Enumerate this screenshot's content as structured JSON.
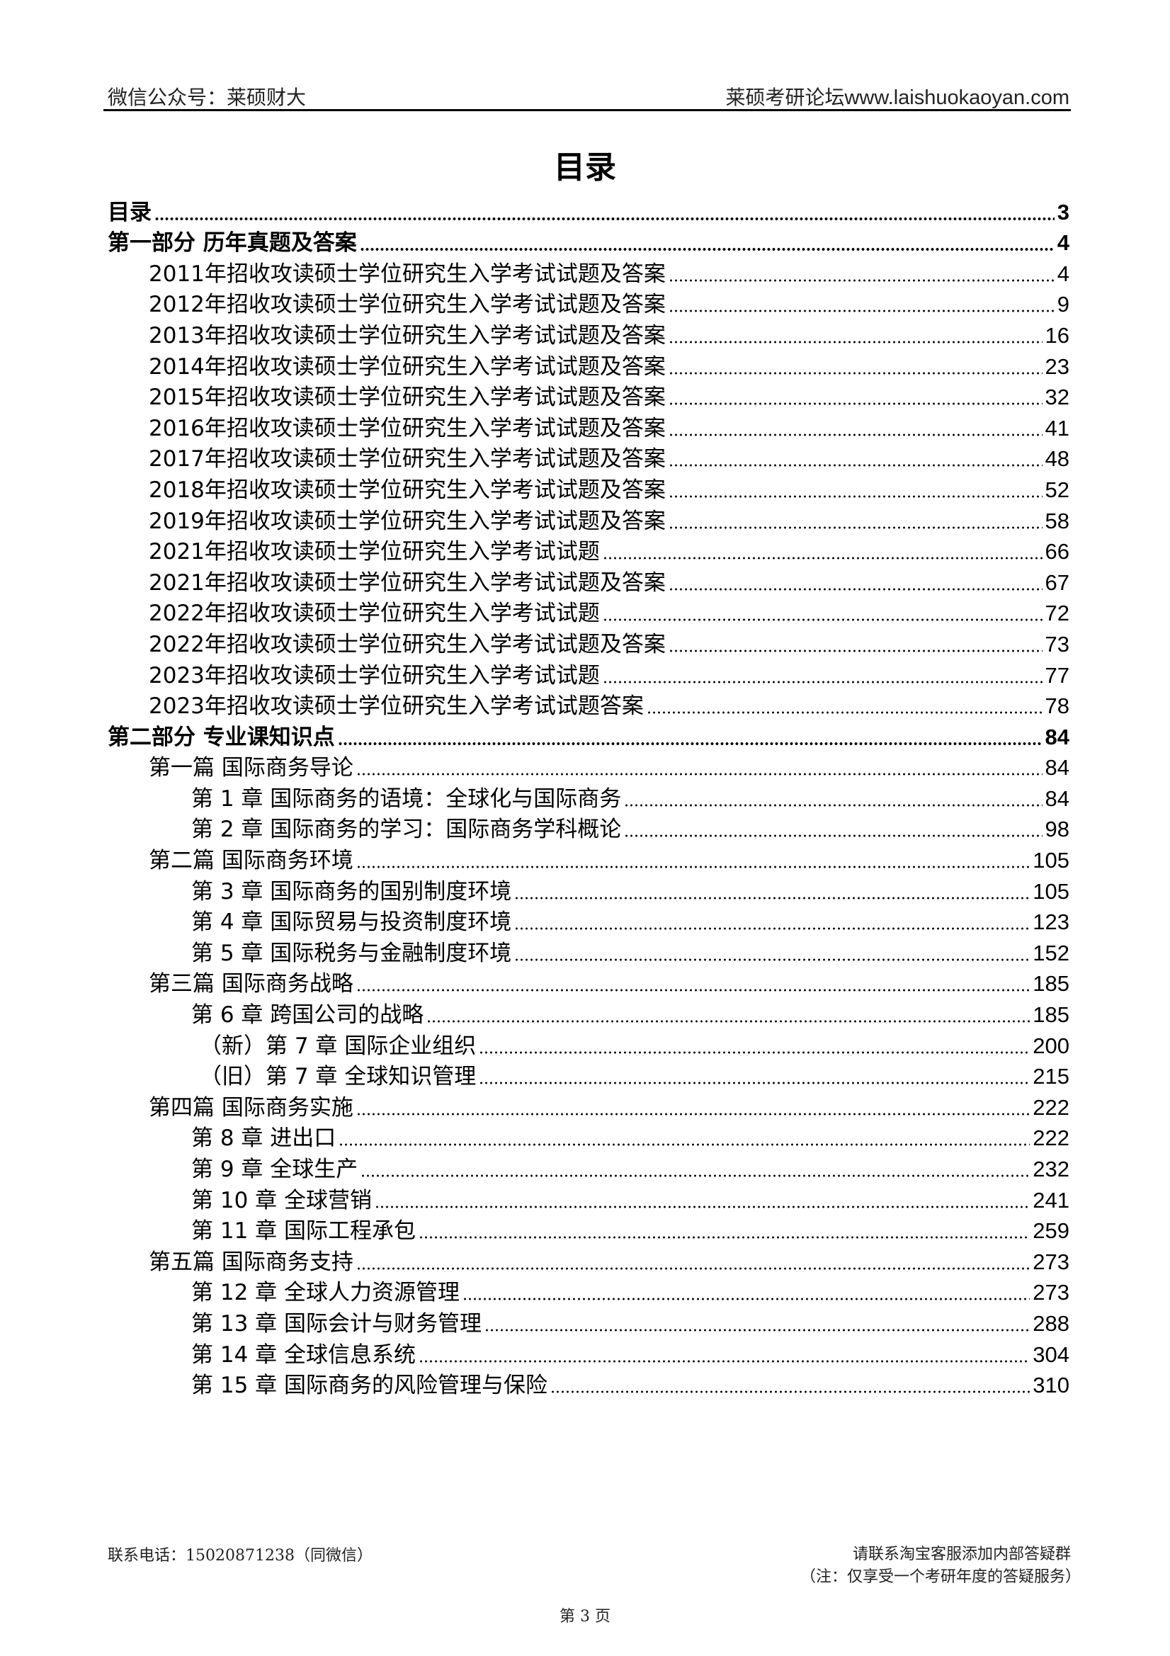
{
  "header": {
    "left": "微信公众号：莱硕财大",
    "right_cn": "莱硕考研论坛",
    "right_url": "www.laishuokaoyan.com"
  },
  "title": "目录",
  "toc": [
    {
      "level": 0,
      "text": "目录",
      "page": "3"
    },
    {
      "level": 0,
      "text": "第一部分  历年真题及答案",
      "page": "4"
    },
    {
      "level": 1,
      "text": "2011年招收攻读硕士学位研究生入学考试试题及答案",
      "page": "4"
    },
    {
      "level": 1,
      "text": "2012年招收攻读硕士学位研究生入学考试试题及答案",
      "page": "9"
    },
    {
      "level": 1,
      "text": "2013年招收攻读硕士学位研究生入学考试试题及答案",
      "page": "16"
    },
    {
      "level": 1,
      "text": "2014年招收攻读硕士学位研究生入学考试试题及答案",
      "page": "23"
    },
    {
      "level": 1,
      "text": "2015年招收攻读硕士学位研究生入学考试试题及答案",
      "page": "32"
    },
    {
      "level": 1,
      "text": "2016年招收攻读硕士学位研究生入学考试试题及答案",
      "page": "41"
    },
    {
      "level": 1,
      "text": "2017年招收攻读硕士学位研究生入学考试试题及答案",
      "page": "48"
    },
    {
      "level": 1,
      "text": "2018年招收攻读硕士学位研究生入学考试试题及答案",
      "page": "52"
    },
    {
      "level": 1,
      "text": "2019年招收攻读硕士学位研究生入学考试试题及答案",
      "page": "58"
    },
    {
      "level": 1,
      "text": "2021年招收攻读硕士学位研究生入学考试试题",
      "page": "66"
    },
    {
      "level": 1,
      "text": "2021年招收攻读硕士学位研究生入学考试试题及答案",
      "page": "67"
    },
    {
      "level": 1,
      "text": "2022年招收攻读硕士学位研究生入学考试试题",
      "page": "72"
    },
    {
      "level": 1,
      "text": "2022年招收攻读硕士学位研究生入学考试试题及答案",
      "page": "73"
    },
    {
      "level": 1,
      "text": "2023年招收攻读硕士学位研究生入学考试试题",
      "page": "77"
    },
    {
      "level": 1,
      "text": "2023年招收攻读硕士学位研究生入学考试试题答案",
      "page": "78"
    },
    {
      "level": 0,
      "text": "第二部分  专业课知识点",
      "page": "84"
    },
    {
      "level": 1,
      "text": "第一篇  国际商务导论",
      "page": "84"
    },
    {
      "level": 2,
      "text": "第 1 章  国际商务的语境：全球化与国际商务",
      "page": "84"
    },
    {
      "level": 2,
      "text": "第 2 章  国际商务的学习：国际商务学科概论",
      "page": "98"
    },
    {
      "level": 1,
      "text": "第二篇  国际商务环境",
      "page": "105"
    },
    {
      "level": 2,
      "text": "第 3 章  国际商务的国别制度环境",
      "page": "105"
    },
    {
      "level": 2,
      "text": "第 4 章  国际贸易与投资制度环境",
      "page": "123"
    },
    {
      "level": 2,
      "text": "第 5 章  国际税务与金融制度环境",
      "page": "152"
    },
    {
      "level": 1,
      "text": "第三篇  国际商务战略",
      "page": "185"
    },
    {
      "level": 2,
      "text": "第 6 章  跨国公司的战略",
      "page": "185"
    },
    {
      "level": 3,
      "text": "（新）第 7 章  国际企业组织",
      "page": "200"
    },
    {
      "level": 3,
      "text": "（旧）第 7 章  全球知识管理",
      "page": "215"
    },
    {
      "level": 1,
      "text": "第四篇  国际商务实施",
      "page": "222"
    },
    {
      "level": 2,
      "text": "第 8 章  进出口",
      "page": "222"
    },
    {
      "level": 2,
      "text": "第 9 章  全球生产",
      "page": "232"
    },
    {
      "level": 2,
      "text": "第 10 章  全球营销",
      "page": "241"
    },
    {
      "level": 2,
      "text": "第 11 章  国际工程承包",
      "page": "259"
    },
    {
      "level": 1,
      "text": "第五篇  国际商务支持",
      "page": "273"
    },
    {
      "level": 2,
      "text": "第 12 章  全球人力资源管理",
      "page": "273"
    },
    {
      "level": 2,
      "text": "第 13 章  国际会计与财务管理",
      "page": "288"
    },
    {
      "level": 2,
      "text": "第 14 章  全球信息系统",
      "page": "304"
    },
    {
      "level": 2,
      "text": "第 15 章  国际商务的风险管理与保险",
      "page": "310"
    }
  ],
  "footer": {
    "contact": "联系电话：15020871238（同微信）",
    "right_line1": "请联系淘宝客服添加内部答疑群",
    "right_line2": "（注：仅享受一个考研年度的答疑服务）",
    "page_number": "第 3 页"
  }
}
